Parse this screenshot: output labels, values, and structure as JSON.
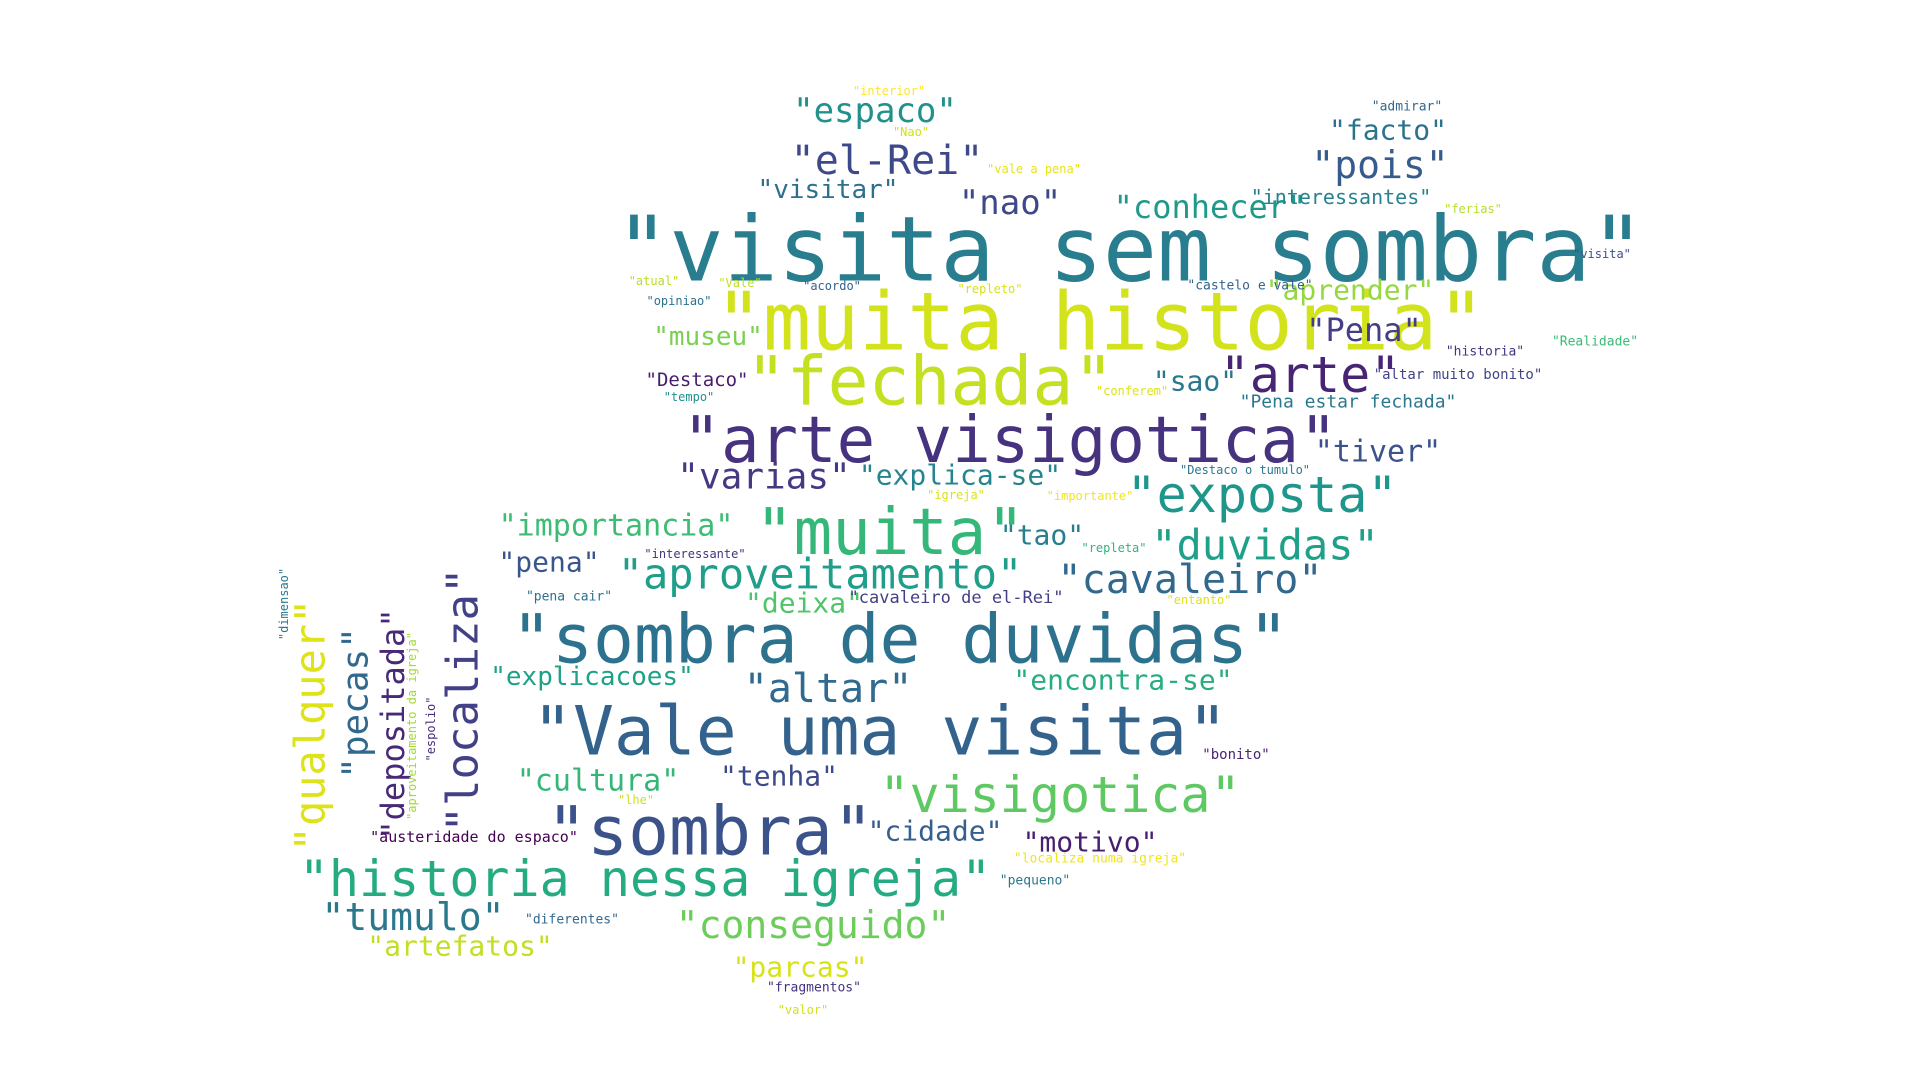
{
  "words": [
    {
      "text": "\"visita sem sombra\"",
      "color": "#287d8e"
    },
    {
      "text": "\"muita historia\"",
      "color": "#d2e21b"
    },
    {
      "text": "\"fechada\"",
      "color": "#c5e021"
    },
    {
      "text": "\"arte visigotica\"",
      "color": "#46327e"
    },
    {
      "text": "\"muita\"",
      "color": "#35b779"
    },
    {
      "text": "\"sombra de duvidas\"",
      "color": "#2c728e"
    },
    {
      "text": "\"Vale uma visita\"",
      "color": "#33638d"
    },
    {
      "text": "\"sombra\"",
      "color": "#3b528b"
    },
    {
      "text": "\"historia nessa igreja\"",
      "color": "#25ab82"
    },
    {
      "text": "\"visigotica\"",
      "color": "#5ec962"
    },
    {
      "text": "\"exposta\"",
      "color": "#1f968b"
    },
    {
      "text": "\"arte\"",
      "color": "#482475"
    },
    {
      "text": "\"aproveitamento\"",
      "color": "#1f9e89"
    },
    {
      "text": "\"duvidas\"",
      "color": "#1fa088"
    },
    {
      "text": "\"cavaleiro\"",
      "color": "#31688e"
    },
    {
      "text": "\"el-Rei\"",
      "color": "#3e4989"
    },
    {
      "text": "\"pois\"",
      "color": "#365c8d"
    },
    {
      "text": "\"espaco\"",
      "color": "#21918c"
    },
    {
      "text": "\"localiza\"",
      "color": "#424086"
    },
    {
      "text": "\"qualquer\"",
      "color": "#dde318"
    },
    {
      "text": "\"pecas\"",
      "color": "#31688e"
    },
    {
      "text": "\"depositada\"",
      "color": "#482878"
    },
    {
      "text": "\"tumulo\"",
      "color": "#2a788e"
    },
    {
      "text": "\"conseguido\"",
      "color": "#6ccd5a"
    },
    {
      "text": "\"altar\"",
      "color": "#306a8e"
    },
    {
      "text": "\"varias\"",
      "color": "#443983"
    },
    {
      "text": "\"importancia\"",
      "color": "#3dbc74"
    },
    {
      "text": "\"nao\"",
      "color": "#3e4989"
    },
    {
      "text": "\"conhecer\"",
      "color": "#1f9a8a"
    },
    {
      "text": "\"Pena\"",
      "color": "#433e85"
    },
    {
      "text": "\"tiver\"",
      "color": "#3b528b"
    },
    {
      "text": "\"explica-se\"",
      "color": "#25858e"
    },
    {
      "text": "\"visitar\"",
      "color": "#2d708e"
    },
    {
      "text": "\"facto\"",
      "color": "#2c728e"
    },
    {
      "text": "\"aprender\"",
      "color": "#95d840"
    },
    {
      "text": "\"museu\"",
      "color": "#7ad151"
    },
    {
      "text": "\"sao\"",
      "color": "#2a788e"
    },
    {
      "text": "\"tao\"",
      "color": "#277f8e"
    },
    {
      "text": "\"pena\"",
      "color": "#39568c"
    },
    {
      "text": "\"deixa\"",
      "color": "#50c46a"
    },
    {
      "text": "\"explicacoes\"",
      "color": "#1fa188"
    },
    {
      "text": "\"encontra-se\"",
      "color": "#27ad81"
    },
    {
      "text": "\"cultura\"",
      "color": "#34b679"
    },
    {
      "text": "\"tenha\"",
      "color": "#3e4989"
    },
    {
      "text": "\"cidade\"",
      "color": "#355f8d"
    },
    {
      "text": "\"motivo\"",
      "color": "#481f70"
    },
    {
      "text": "\"artefatos\"",
      "color": "#c2df23"
    },
    {
      "text": "\"parcas\"",
      "color": "#d8e219"
    },
    {
      "text": "\"interessantes\"",
      "color": "#26828e"
    },
    {
      "text": "\"Pena estar fechada\"",
      "color": "#2a788e"
    },
    {
      "text": "\"Destaco\"",
      "color": "#481b6d"
    },
    {
      "text": "\"cavaleiro de el-Rei\"",
      "color": "#423f85"
    },
    {
      "text": "\"austeridade do espaco\"",
      "color": "#440154"
    },
    {
      "text": "\"interior\"",
      "color": "#fde725"
    },
    {
      "text": "\"espolio\"",
      "color": "#472d7b"
    },
    {
      "text": "\"aproveitamento da igreja\"",
      "color": "#a2da37"
    },
    {
      "text": "\"dimensao\"",
      "color": "#2a788e"
    },
    {
      "text": "\"admirar\"",
      "color": "#31688e"
    },
    {
      "text": "\"Nao\"",
      "color": "#cde11d"
    },
    {
      "text": "\"vale a pena\"",
      "color": "#e5e419"
    },
    {
      "text": "\"ferias\"",
      "color": "#b5de2b"
    },
    {
      "text": "\"visita\"",
      "color": "#3b528b"
    },
    {
      "text": "\"atual\"",
      "color": "#b8de29"
    },
    {
      "text": "\"Vale\"",
      "color": "#bddf26"
    },
    {
      "text": "\"acordo\"",
      "color": "#33638d"
    },
    {
      "text": "\"repleto\"",
      "color": "#d8e219"
    },
    {
      "text": "\"castelo e vale\"",
      "color": "#33638d"
    },
    {
      "text": "\"opiniao\"",
      "color": "#2c728e"
    },
    {
      "text": "\"Realidade\"",
      "color": "#3aba76"
    },
    {
      "text": "\"historia\"",
      "color": "#46337f"
    },
    {
      "text": "\"altar muito bonito\"",
      "color": "#414487"
    },
    {
      "text": "\"tempo\"",
      "color": "#21918c"
    },
    {
      "text": "\"conferem\"",
      "color": "#dde318"
    },
    {
      "text": "\"Destaco o tumulo\"",
      "color": "#2a788e"
    },
    {
      "text": "\"igreja\"",
      "color": "#dae319"
    },
    {
      "text": "\"importante\"",
      "color": "#f1e51d"
    },
    {
      "text": "\"interessante\"",
      "color": "#46327e"
    },
    {
      "text": "\"repleta\"",
      "color": "#31b57b"
    },
    {
      "text": "\"pena cair\"",
      "color": "#2d708e"
    },
    {
      "text": "\"entanto\"",
      "color": "#dde318"
    },
    {
      "text": "\"bonito\"",
      "color": "#482475"
    },
    {
      "text": "\"lhe\"",
      "color": "#cde11d"
    },
    {
      "text": "\"localiza numa igreja\"",
      "color": "#f1e51d"
    },
    {
      "text": "\"pequeno\"",
      "color": "#2a788e"
    },
    {
      "text": "\"diferentes\"",
      "color": "#31688e"
    },
    {
      "text": "\"fragmentos\"",
      "color": "#46327e"
    },
    {
      "text": "\"valor\"",
      "color": "#d2e21b"
    }
  ]
}
